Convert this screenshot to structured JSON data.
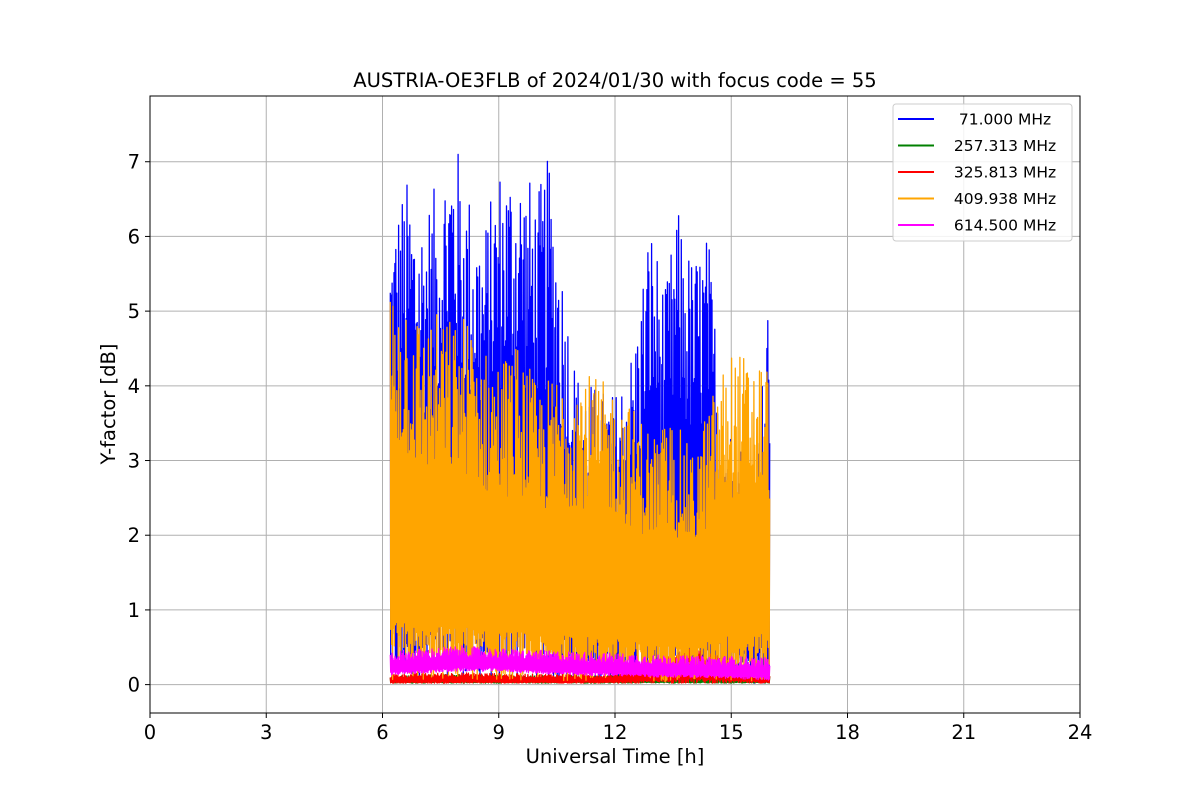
{
  "chart_data": {
    "type": "line",
    "title": "AUSTRIA-OE3FLB of 2024/01/30 with focus code = 55",
    "xlabel": "Universal Time [h]",
    "ylabel": "Y-factor [dB]",
    "xlim": [
      0,
      24
    ],
    "ylim": [
      -0.38,
      7.88
    ],
    "xticks": [
      0,
      3,
      6,
      9,
      12,
      15,
      18,
      21,
      24
    ],
    "xtick_labels": [
      "0",
      "3",
      "6",
      "9",
      "12",
      "15",
      "18",
      "21",
      "24"
    ],
    "yticks": [
      0,
      1,
      2,
      3,
      4,
      5,
      6,
      7
    ],
    "ytick_labels": [
      "0",
      "1",
      "2",
      "3",
      "4",
      "5",
      "6",
      "7"
    ],
    "grid": true,
    "legend_position": "upper right",
    "series": [
      {
        "name": "  71.000 MHz",
        "color": "#0000ff",
        "band": [
          {
            "x": 6.2,
            "low": 0.05,
            "high": 6.2
          },
          {
            "x": 6.6,
            "low": 0.04,
            "high": 6.8
          },
          {
            "x": 7.0,
            "low": 0.04,
            "high": 6.4
          },
          {
            "x": 7.4,
            "low": 0.05,
            "high": 6.7
          },
          {
            "x": 7.8,
            "low": 0.05,
            "high": 7.5
          },
          {
            "x": 8.2,
            "low": 0.06,
            "high": 6.7
          },
          {
            "x": 8.6,
            "low": 0.06,
            "high": 6.1
          },
          {
            "x": 9.0,
            "low": 0.06,
            "high": 7.0
          },
          {
            "x": 9.5,
            "low": 0.06,
            "high": 7.1
          },
          {
            "x": 10.0,
            "low": 0.05,
            "high": 6.6
          },
          {
            "x": 10.3,
            "low": 0.05,
            "high": 7.1
          },
          {
            "x": 10.7,
            "low": 0.04,
            "high": 5.4
          },
          {
            "x": 11.0,
            "low": 0.03,
            "high": 4.2
          },
          {
            "x": 11.5,
            "low": 0.03,
            "high": 4.0
          },
          {
            "x": 12.0,
            "low": 0.03,
            "high": 3.9
          },
          {
            "x": 12.5,
            "low": 0.03,
            "high": 4.6
          },
          {
            "x": 12.9,
            "low": 0.02,
            "high": 6.3
          },
          {
            "x": 13.3,
            "low": 0.02,
            "high": 5.3
          },
          {
            "x": 13.6,
            "low": 0.03,
            "high": 6.4
          },
          {
            "x": 14.0,
            "low": 0.03,
            "high": 5.7
          },
          {
            "x": 14.4,
            "low": 0.03,
            "high": 6.1
          },
          {
            "x": 14.8,
            "low": 0.03,
            "high": 3.6
          },
          {
            "x": 15.2,
            "low": 0.02,
            "high": 3.3
          },
          {
            "x": 15.6,
            "low": 0.02,
            "high": 3.0
          },
          {
            "x": 16.0,
            "low": 0.0,
            "high": 5.3
          }
        ]
      },
      {
        "name": " 257.313 MHz",
        "color": "#008000",
        "band": [
          {
            "x": 6.2,
            "low": 0.02,
            "high": 0.12
          },
          {
            "x": 8.0,
            "low": 0.02,
            "high": 0.14
          },
          {
            "x": 10.0,
            "low": 0.02,
            "high": 0.12
          },
          {
            "x": 12.0,
            "low": 0.02,
            "high": 0.12
          },
          {
            "x": 14.0,
            "low": 0.02,
            "high": 0.12
          },
          {
            "x": 16.0,
            "low": 0.02,
            "high": 0.12
          }
        ]
      },
      {
        "name": " 325.813 MHz",
        "color": "#ff0000",
        "band": [
          {
            "x": 6.2,
            "low": 0.02,
            "high": 0.14
          },
          {
            "x": 8.0,
            "low": 0.02,
            "high": 0.16
          },
          {
            "x": 10.0,
            "low": 0.02,
            "high": 0.14
          },
          {
            "x": 12.0,
            "low": 0.02,
            "high": 0.14
          },
          {
            "x": 14.0,
            "low": 0.02,
            "high": 0.5
          },
          {
            "x": 16.0,
            "low": 0.02,
            "high": 0.14
          }
        ]
      },
      {
        "name": " 409.938 MHz",
        "color": "#ffa500",
        "band": [
          {
            "x": 6.2,
            "low": 0.05,
            "high": 5.4
          },
          {
            "x": 6.6,
            "low": 0.05,
            "high": 5.4
          },
          {
            "x": 7.0,
            "low": 0.05,
            "high": 4.9
          },
          {
            "x": 7.4,
            "low": 0.06,
            "high": 5.0
          },
          {
            "x": 7.8,
            "low": 0.06,
            "high": 4.9
          },
          {
            "x": 8.2,
            "low": 0.06,
            "high": 5.0
          },
          {
            "x": 8.6,
            "low": 0.06,
            "high": 4.5
          },
          {
            "x": 9.0,
            "low": 0.06,
            "high": 4.4
          },
          {
            "x": 9.5,
            "low": 0.06,
            "high": 4.6
          },
          {
            "x": 10.0,
            "low": 0.06,
            "high": 4.0
          },
          {
            "x": 10.5,
            "low": 0.05,
            "high": 4.2
          },
          {
            "x": 11.0,
            "low": 0.04,
            "high": 4.3
          },
          {
            "x": 11.5,
            "low": 0.04,
            "high": 4.1
          },
          {
            "x": 12.0,
            "low": 0.04,
            "high": 4.0
          },
          {
            "x": 12.5,
            "low": 0.04,
            "high": 3.7
          },
          {
            "x": 13.0,
            "low": 0.04,
            "high": 3.4
          },
          {
            "x": 13.5,
            "low": 0.04,
            "high": 3.6
          },
          {
            "x": 14.0,
            "low": 0.04,
            "high": 3.1
          },
          {
            "x": 14.5,
            "low": 0.04,
            "high": 3.9
          },
          {
            "x": 15.0,
            "low": 0.03,
            "high": 4.5
          },
          {
            "x": 15.5,
            "low": 0.03,
            "high": 4.4
          },
          {
            "x": 16.0,
            "low": 0.03,
            "high": 4.4
          }
        ]
      },
      {
        "name": " 614.500 MHz",
        "color": "#ff00ff",
        "band": [
          {
            "x": 6.2,
            "low": 0.12,
            "high": 0.45
          },
          {
            "x": 7.0,
            "low": 0.15,
            "high": 0.48
          },
          {
            "x": 8.0,
            "low": 0.18,
            "high": 0.52
          },
          {
            "x": 9.0,
            "low": 0.18,
            "high": 0.48
          },
          {
            "x": 10.0,
            "low": 0.15,
            "high": 0.46
          },
          {
            "x": 11.0,
            "low": 0.12,
            "high": 0.44
          },
          {
            "x": 12.0,
            "low": 0.12,
            "high": 0.42
          },
          {
            "x": 13.0,
            "low": 0.1,
            "high": 0.4
          },
          {
            "x": 14.0,
            "low": 0.1,
            "high": 0.38
          },
          {
            "x": 15.0,
            "low": 0.08,
            "high": 0.38
          },
          {
            "x": 16.0,
            "low": 0.06,
            "high": 0.36
          }
        ]
      }
    ]
  }
}
